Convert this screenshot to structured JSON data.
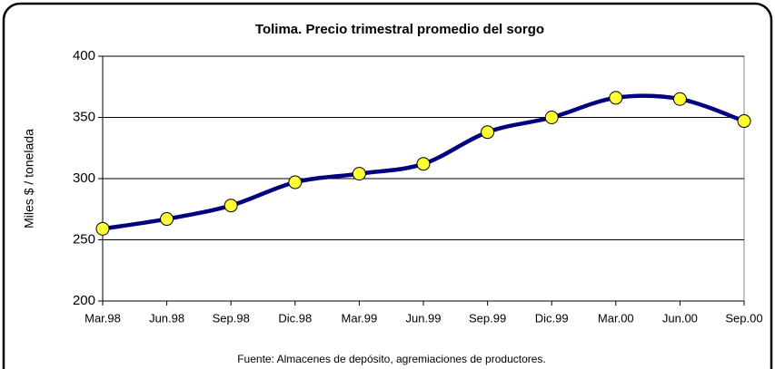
{
  "chart_data": {
    "type": "line",
    "title": "Tolima. Precio trimestral promedio del sorgo",
    "y_label": "Miles $ / tonelada",
    "source": "Fuente: Almacenes de depósito, agremiaciones de productores.",
    "categories": [
      "Mar.98",
      "Jun.98",
      "Sep.98",
      "Dic.98",
      "Mar.99",
      "Jun.99",
      "Sep.99",
      "Dic.99",
      "Mar.00",
      "Jun.00",
      "Sep.00"
    ],
    "series": [
      {
        "name": "Precio",
        "color": "#000080",
        "marker_color": "#ffff33",
        "values": [
          259,
          267,
          278,
          297,
          304,
          312,
          338,
          350,
          366,
          365,
          347
        ]
      }
    ],
    "ylim": [
      200,
      400
    ],
    "yticks": [
      200,
      250,
      300,
      350,
      400
    ],
    "grid": true
  }
}
